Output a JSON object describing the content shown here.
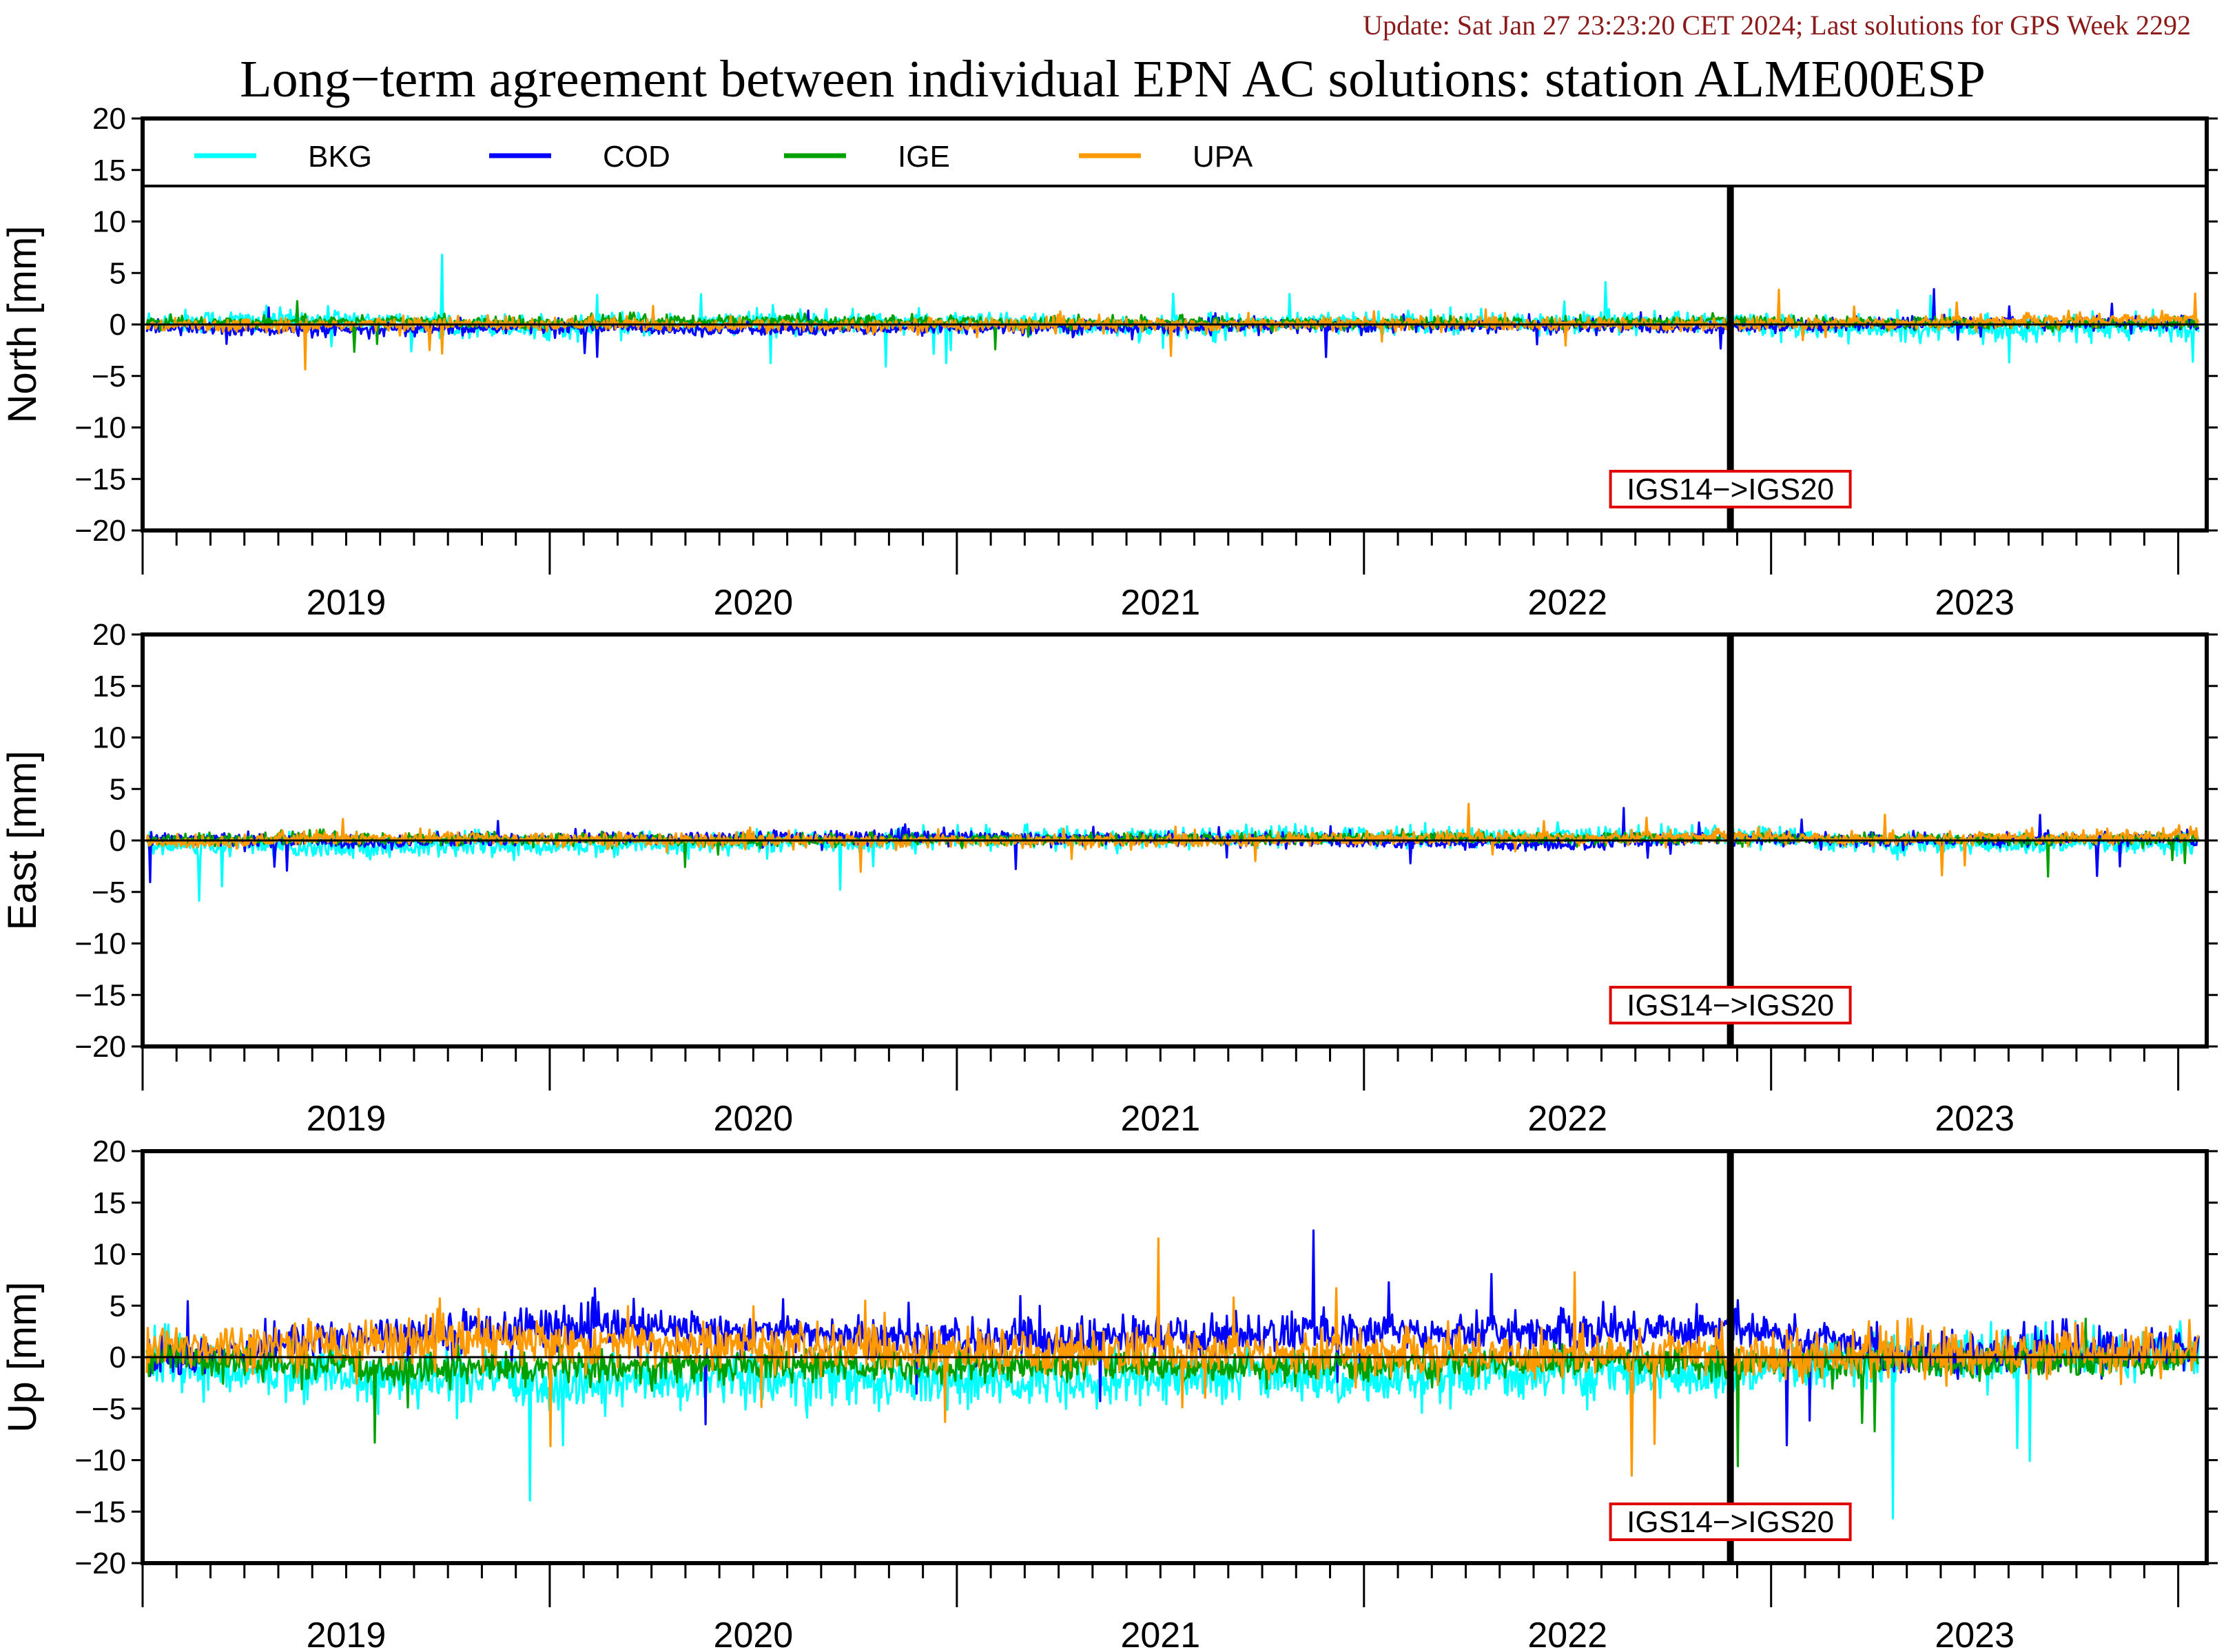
{
  "header": {
    "update_text": "Update: Sat Jan 27 23:23:20 CET 2024; Last solutions for GPS Week 2292",
    "title": "Long−term agreement between individual EPN AC solutions: station ALME00ESP"
  },
  "colors": {
    "update_text": "#8b1a1a",
    "BKG": "#00ffff",
    "COD": "#0000ff",
    "IGE": "#00a000",
    "UPA": "#ff9900",
    "annotation_border": "#e00000"
  },
  "legend": {
    "placement": "top of first panel",
    "entries": [
      "BKG",
      "COD",
      "IGE",
      "UPA"
    ]
  },
  "chart_data": [
    {
      "type": "line",
      "panel": "north",
      "ylabel": "North [mm]",
      "ylim": [
        -20,
        20
      ],
      "yticks": [
        20,
        15,
        10,
        5,
        0,
        -5,
        -10,
        -15,
        -20
      ],
      "xlim": [
        2018.5,
        2023.57
      ],
      "xtick_labels": [
        "2019",
        "2020",
        "2021",
        "2022",
        "2023"
      ],
      "zero_line": true,
      "frame_change": {
        "x": 2022.4,
        "label": "IGS14−>IGS20"
      },
      "series": [
        {
          "name": "BKG",
          "x": [
            2018.5,
            2019.0,
            2019.5,
            2020.0,
            2020.5,
            2021.0,
            2021.5,
            2022.0,
            2022.4,
            2022.8,
            2023.2,
            2023.5
          ],
          "y": [
            0.3,
            0.4,
            -0.3,
            0.2,
            0.1,
            -0.2,
            0.2,
            0.3,
            0.2,
            -0.4,
            -0.3,
            -0.4
          ],
          "spread": 1.0
        },
        {
          "name": "COD",
          "x": [
            2018.5,
            2019.0,
            2019.5,
            2020.0,
            2020.5,
            2021.0,
            2021.5,
            2022.0,
            2022.4,
            2022.8,
            2023.2,
            2023.5
          ],
          "y": [
            -0.3,
            -0.6,
            -0.2,
            -0.5,
            -0.3,
            -0.2,
            -0.1,
            -0.2,
            -0.3,
            0.1,
            0.2,
            0.1
          ],
          "spread": 0.6
        },
        {
          "name": "IGE",
          "x": [
            2018.5,
            2019.0,
            2019.5,
            2020.0,
            2020.5,
            2021.0,
            2021.5,
            2022.0,
            2022.4,
            2022.8,
            2023.2,
            2023.5
          ],
          "y": [
            0.2,
            0.3,
            0.2,
            0.4,
            0.2,
            0.2,
            0.1,
            0.2,
            0.3,
            0.2,
            0.1,
            0.1
          ],
          "spread": 0.5
        },
        {
          "name": "UPA",
          "x": [
            2018.5,
            2019.0,
            2019.5,
            2020.0,
            2020.5,
            2021.0,
            2021.5,
            2022.0,
            2022.4,
            2022.8,
            2023.2,
            2023.5
          ],
          "y": [
            -0.2,
            0.0,
            0.1,
            -0.1,
            0.0,
            0.0,
            0.1,
            0.0,
            0.0,
            0.2,
            0.4,
            0.6
          ],
          "spread": 0.6
        }
      ]
    },
    {
      "type": "line",
      "panel": "east",
      "ylabel": "East [mm]",
      "ylim": [
        -20,
        20
      ],
      "yticks": [
        20,
        15,
        10,
        5,
        0,
        -5,
        -10,
        -15,
        -20
      ],
      "xlim": [
        2018.5,
        2023.57
      ],
      "xtick_labels": [
        "2019",
        "2020",
        "2021",
        "2022",
        "2023"
      ],
      "zero_line": true,
      "frame_change": {
        "x": 2022.4,
        "label": "IGS14−>IGS20"
      },
      "series": [
        {
          "name": "BKG",
          "x": [
            2018.5,
            2019.0,
            2019.5,
            2020.0,
            2020.5,
            2021.0,
            2021.5,
            2022.0,
            2022.4,
            2022.8,
            2023.2,
            2023.5
          ],
          "y": [
            -0.5,
            -0.6,
            -0.5,
            -0.3,
            0.2,
            0.3,
            0.4,
            0.3,
            0.6,
            -0.4,
            -0.4,
            -0.3
          ],
          "spread": 0.9
        },
        {
          "name": "COD",
          "x": [
            2018.5,
            2019.0,
            2019.5,
            2020.0,
            2020.5,
            2021.0,
            2021.5,
            2022.0,
            2022.4,
            2022.8,
            2023.2,
            2023.5
          ],
          "y": [
            0.3,
            -0.2,
            0.2,
            0.3,
            0.3,
            0.2,
            -0.1,
            -0.4,
            0.3,
            0.0,
            0.1,
            0.1
          ],
          "spread": 0.6
        },
        {
          "name": "IGE",
          "x": [
            2018.5,
            2019.0,
            2019.5,
            2020.0,
            2020.5,
            2021.0,
            2021.5,
            2022.0,
            2022.4,
            2022.8,
            2023.2,
            2023.5
          ],
          "y": [
            0.1,
            0.2,
            0.1,
            0.0,
            0.1,
            0.1,
            0.3,
            0.2,
            0.2,
            0.1,
            0.1,
            0.2
          ],
          "spread": 0.5
        },
        {
          "name": "UPA",
          "x": [
            2018.5,
            2019.0,
            2019.5,
            2020.0,
            2020.5,
            2021.0,
            2021.5,
            2022.0,
            2022.4,
            2022.8,
            2023.2,
            2023.5
          ],
          "y": [
            -0.3,
            0.3,
            0.2,
            0.0,
            0.0,
            -0.1,
            0.2,
            0.3,
            0.4,
            0.1,
            0.3,
            0.5
          ],
          "spread": 0.6
        }
      ]
    },
    {
      "type": "line",
      "panel": "up",
      "ylabel": "Up [mm]",
      "ylim": [
        -20,
        20
      ],
      "yticks": [
        20,
        15,
        10,
        5,
        0,
        -5,
        -10,
        -15,
        -20
      ],
      "xlim": [
        2018.5,
        2023.57
      ],
      "xtick_labels": [
        "2019",
        "2020",
        "2021",
        "2022",
        "2023"
      ],
      "zero_line": true,
      "frame_change": {
        "x": 2022.4,
        "label": "IGS14−>IGS20"
      },
      "series": [
        {
          "name": "BKG",
          "x": [
            2018.5,
            2019.0,
            2019.5,
            2020.0,
            2020.5,
            2021.0,
            2021.5,
            2022.0,
            2022.4,
            2022.8,
            2023.2,
            2023.5
          ],
          "y": [
            -0.5,
            -2.0,
            -2.5,
            -2.0,
            -2.5,
            -2.0,
            -2.0,
            -1.5,
            -2.0,
            0.2,
            0.5,
            0.3
          ],
          "spread": 2.2
        },
        {
          "name": "COD",
          "x": [
            2018.5,
            2019.0,
            2019.5,
            2020.0,
            2020.5,
            2021.0,
            2021.5,
            2022.0,
            2022.4,
            2022.8,
            2023.2,
            2023.5
          ],
          "y": [
            -0.5,
            2.0,
            3.0,
            2.5,
            1.5,
            2.0,
            2.5,
            2.5,
            3.0,
            0.3,
            0.5,
            1.0
          ],
          "spread": 1.8
        },
        {
          "name": "IGE",
          "x": [
            2018.5,
            2019.0,
            2019.5,
            2020.0,
            2020.5,
            2021.0,
            2021.5,
            2022.0,
            2022.4,
            2022.8,
            2023.2,
            2023.5
          ],
          "y": [
            0.0,
            -1.0,
            -1.0,
            -0.8,
            -0.8,
            -0.8,
            -0.8,
            -0.5,
            -0.5,
            -0.5,
            -0.5,
            -0.3
          ],
          "spread": 1.4
        },
        {
          "name": "UPA",
          "x": [
            2018.5,
            2019.0,
            2019.5,
            2020.0,
            2020.5,
            2021.0,
            2021.5,
            2022.0,
            2022.4,
            2022.8,
            2023.2,
            2023.5
          ],
          "y": [
            1.0,
            1.5,
            1.5,
            1.0,
            0.5,
            0.5,
            0.5,
            0.3,
            0.3,
            0.2,
            0.5,
            0.5
          ],
          "spread": 2.0
        }
      ]
    }
  ]
}
